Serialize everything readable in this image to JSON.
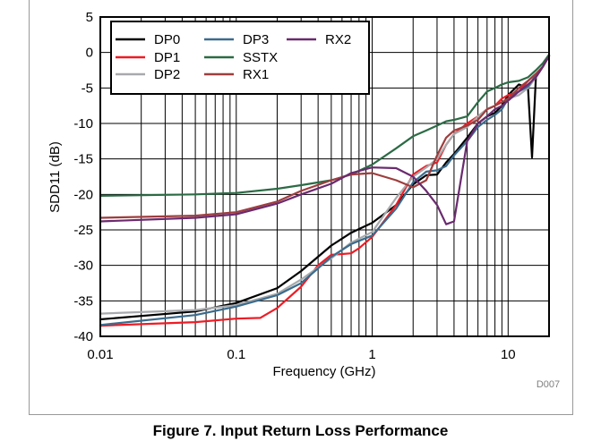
{
  "chart_data": {
    "type": "line",
    "title": "",
    "xlabel": "Frequency (GHz)",
    "ylabel": "SDD11 (dB)",
    "xscale": "log",
    "xlim": [
      0.01,
      20
    ],
    "ylim": [
      -40,
      5
    ],
    "x_ticks": [
      0.01,
      0.1,
      1,
      10
    ],
    "x_tick_labels": [
      "0.01",
      "0.1",
      "1",
      "10"
    ],
    "y_ticks": [
      5,
      0,
      -5,
      -10,
      -15,
      -20,
      -25,
      -30,
      -35,
      -40
    ],
    "y_tick_labels": [
      "5",
      "0",
      "-5",
      "-10",
      "-15",
      "-20",
      "-25",
      "-30",
      "-35",
      "-40"
    ],
    "grid": true,
    "legend_position": "top-left",
    "figure_id": "D007",
    "series": [
      {
        "name": "DP0",
        "color": "#000000",
        "x": [
          0.01,
          0.05,
          0.1,
          0.2,
          0.3,
          0.5,
          0.7,
          1.0,
          1.5,
          2.0,
          2.5,
          3.0,
          3.5,
          4.0,
          5.0,
          6.0,
          7.0,
          8.0,
          9.0,
          10.0,
          12.0,
          14.0,
          15.0,
          16.0,
          18.0,
          20.0
        ],
        "y": [
          -37.6,
          -36.5,
          -35.3,
          -33.2,
          -30.8,
          -27.2,
          -25.4,
          -24.0,
          -21.5,
          -18.6,
          -17.3,
          -17.2,
          -15.5,
          -14.3,
          -12.0,
          -10.0,
          -9.0,
          -8.5,
          -7.5,
          -6.0,
          -4.5,
          -5.0,
          -14.8,
          -3.5,
          -2.0,
          -0.5
        ]
      },
      {
        "name": "DP1",
        "color": "#ee1c25",
        "x": [
          0.01,
          0.05,
          0.1,
          0.15,
          0.2,
          0.3,
          0.4,
          0.5,
          0.6,
          0.7,
          0.8,
          1.0,
          1.5,
          2.0,
          2.5,
          3.0,
          3.5,
          4.0,
          5.0,
          6.0,
          7.0,
          8.0,
          9.0,
          10.0,
          12.0,
          14.0,
          16.0,
          18.0,
          20.0
        ],
        "y": [
          -38.5,
          -38.0,
          -37.5,
          -37.4,
          -36.0,
          -33.0,
          -30.0,
          -28.5,
          -28.4,
          -28.3,
          -27.6,
          -26.0,
          -21.5,
          -17.2,
          -16.0,
          -15.5,
          -13.0,
          -11.5,
          -10.0,
          -9.0,
          -8.0,
          -7.5,
          -6.5,
          -6.0,
          -5.5,
          -4.0,
          -3.0,
          -2.0,
          -0.5
        ]
      },
      {
        "name": "DP2",
        "color": "#a7a9ac",
        "x": [
          0.01,
          0.05,
          0.1,
          0.2,
          0.3,
          0.5,
          0.7,
          1.0,
          1.5,
          2.0,
          2.5,
          3.0,
          3.5,
          4.0,
          5.0,
          6.0,
          7.0,
          8.0,
          9.0,
          10.0,
          12.0,
          14.0,
          16.0,
          18.0,
          20.0
        ],
        "y": [
          -36.8,
          -36.3,
          -35.6,
          -34.0,
          -32.0,
          -29.0,
          -26.8,
          -25.3,
          -20.5,
          -17.5,
          -16.2,
          -15.0,
          -13.0,
          -11.5,
          -10.5,
          -9.0,
          -8.0,
          -7.5,
          -7.0,
          -6.5,
          -6.0,
          -5.0,
          -3.5,
          -2.0,
          -0.5
        ]
      },
      {
        "name": "DP3",
        "color": "#3a6c8e",
        "x": [
          0.01,
          0.05,
          0.1,
          0.2,
          0.3,
          0.5,
          0.7,
          1.0,
          1.5,
          2.0,
          2.5,
          3.0,
          3.5,
          4.0,
          5.0,
          6.0,
          7.0,
          8.0,
          9.0,
          10.0,
          12.0,
          14.0,
          16.0,
          18.0,
          20.0
        ],
        "y": [
          -38.4,
          -37.0,
          -35.8,
          -34.2,
          -32.5,
          -28.8,
          -27.0,
          -25.8,
          -22.0,
          -18.3,
          -16.8,
          -16.6,
          -16.0,
          -14.5,
          -12.5,
          -10.5,
          -9.5,
          -8.8,
          -8.0,
          -6.5,
          -5.5,
          -4.8,
          -3.2,
          -2.0,
          -0.5
        ]
      },
      {
        "name": "SSTX",
        "color": "#2b6b45",
        "x": [
          0.01,
          0.05,
          0.1,
          0.2,
          0.3,
          0.5,
          0.7,
          1.0,
          1.5,
          2.0,
          2.5,
          3.0,
          3.5,
          4.0,
          5.0,
          6.0,
          7.0,
          8.0,
          9.0,
          10.0,
          12.0,
          14.0,
          16.0,
          18.0,
          20.0
        ],
        "y": [
          -20.2,
          -20.0,
          -19.8,
          -19.2,
          -18.7,
          -18.0,
          -17.2,
          -15.8,
          -13.5,
          -11.8,
          -11.0,
          -10.3,
          -9.7,
          -9.5,
          -9.0,
          -7.0,
          -5.5,
          -5.0,
          -4.5,
          -4.2,
          -4.0,
          -3.5,
          -2.5,
          -1.5,
          -0.3
        ]
      },
      {
        "name": "RX1",
        "color": "#9e3d3d",
        "x": [
          0.01,
          0.05,
          0.1,
          0.2,
          0.3,
          0.5,
          0.7,
          1.0,
          1.5,
          2.0,
          2.5,
          3.0,
          3.5,
          4.0,
          5.0,
          6.0,
          7.0,
          8.0,
          9.0,
          10.0,
          12.0,
          14.0,
          16.0,
          18.0,
          20.0
        ],
        "y": [
          -23.3,
          -23.0,
          -22.5,
          -21.0,
          -19.5,
          -18.0,
          -17.2,
          -17.0,
          -18.0,
          -19.0,
          -18.0,
          -14.5,
          -12.0,
          -11.0,
          -10.3,
          -9.5,
          -8.0,
          -7.5,
          -7.0,
          -6.5,
          -5.0,
          -4.0,
          -3.0,
          -2.0,
          -0.5
        ]
      },
      {
        "name": "RX2",
        "color": "#6a2a6f",
        "x": [
          0.01,
          0.05,
          0.1,
          0.2,
          0.3,
          0.5,
          0.7,
          1.0,
          1.5,
          2.0,
          2.5,
          3.0,
          3.5,
          4.0,
          5.0,
          6.0,
          7.0,
          8.0,
          9.0,
          10.0,
          12.0,
          14.0,
          16.0,
          18.0,
          20.0
        ],
        "y": [
          -23.8,
          -23.3,
          -22.8,
          -21.3,
          -20.0,
          -18.5,
          -17.0,
          -16.2,
          -16.3,
          -17.5,
          -19.5,
          -21.5,
          -24.2,
          -23.8,
          -12.5,
          -10.0,
          -9.0,
          -8.0,
          -7.5,
          -6.8,
          -5.5,
          -4.5,
          -3.5,
          -2.0,
          -0.5
        ]
      }
    ]
  },
  "caption": "Figure 7. Input Return Loss Performance"
}
